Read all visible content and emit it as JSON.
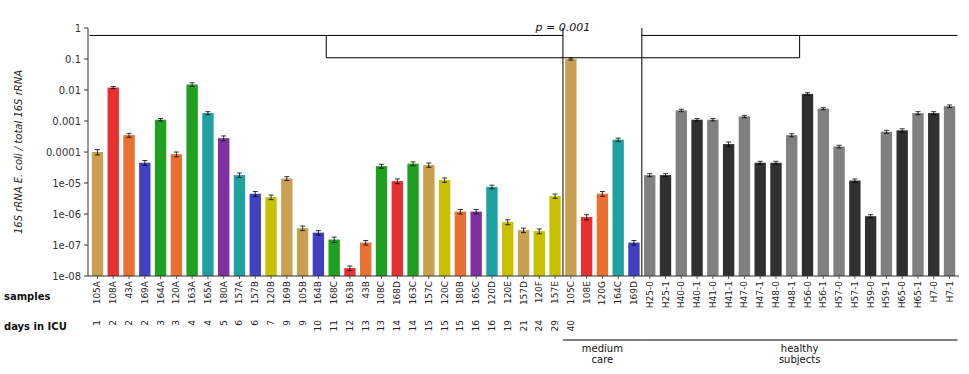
{
  "chart_data": {
    "type": "bar",
    "log": "y",
    "grid": false,
    "ylabel": "16S rRNA E. coli / total 16S rRNA",
    "ylim": [
      1e-08,
      1
    ],
    "yticks": [
      {
        "value": 1e-08,
        "label": "1e-08"
      },
      {
        "value": 1e-07,
        "label": "1e-07"
      },
      {
        "value": 1e-06,
        "label": "1e-06"
      },
      {
        "value": 1e-05,
        "label": "1e-05"
      },
      0.0001,
      0.001,
      0.01,
      0.1,
      1
    ],
    "categories": [
      "105A",
      "108A",
      "43A",
      "169A",
      "164A",
      "120A",
      "163A",
      "165A",
      "180A",
      "157A",
      "157B",
      "120B",
      "169B",
      "105B",
      "164B",
      "168C",
      "163B",
      "43B",
      "108C",
      "168D",
      "163C",
      "157C",
      "120C",
      "180B",
      "165C",
      "120D",
      "120E",
      "157D",
      "120F",
      "157E",
      "105C",
      "108E",
      "120G",
      "164C",
      "169D",
      "H25-0",
      "H25-1",
      "H40-0",
      "H40-1",
      "H41-0",
      "H41-1",
      "H47-0",
      "H47-1",
      "H48-0",
      "H48-1",
      "H56-0",
      "H56-1",
      "H57-0",
      "H57-1",
      "H59-0",
      "H59-1",
      "H65-0",
      "H65-1",
      "H7-0",
      "H7-1"
    ],
    "days": [
      "1",
      "2",
      "2",
      "2",
      "3",
      "3",
      "4",
      "4",
      "5",
      "6",
      "6",
      "7",
      "9",
      "9",
      "10",
      "11",
      "12",
      "13",
      "13",
      "14",
      "14",
      "15",
      "15",
      "15",
      "16",
      "16",
      "19",
      "21",
      "24",
      "29",
      "40",
      null,
      null,
      null,
      null,
      null,
      null,
      null,
      null,
      null,
      null,
      null,
      null,
      null,
      null,
      null,
      null,
      null,
      null,
      null,
      null,
      null,
      null,
      null,
      null
    ],
    "values": [
      0.0001,
      0.012,
      0.00035,
      4.5e-05,
      0.0011,
      8.5e-05,
      0.015,
      0.0018,
      0.00028,
      1.8e-05,
      4.5e-06,
      3.5e-06,
      1.4e-05,
      3.5e-07,
      2.5e-07,
      1.5e-07,
      1.8e-08,
      1.2e-07,
      3.5e-05,
      1.15e-05,
      4.2e-05,
      3.8e-05,
      1.25e-05,
      1.2e-06,
      1.2e-06,
      7.5e-06,
      5.5e-07,
      3e-07,
      2.8e-07,
      3.8e-06,
      0.1,
      8e-07,
      4.5e-06,
      0.00025,
      1.2e-07,
      1.8e-05,
      1.8e-05,
      0.0022,
      0.0011,
      0.0011,
      0.00018,
      0.0014,
      4.5e-05,
      4.5e-05,
      0.00035,
      0.0075,
      0.0025,
      0.00015,
      1.2e-05,
      8.5e-07,
      0.00045,
      0.0005,
      0.0018,
      0.0018,
      0.003
    ],
    "err_lo": [
      2e-05,
      0.001,
      5e-05,
      8e-06,
      0.0001,
      1.5e-05,
      0.002,
      0.0002,
      5e-05,
      3e-06,
      8e-07,
      6e-07,
      2e-06,
      6e-08,
      4e-08,
      3e-08,
      3e-09,
      2e-08,
      5e-06,
      2e-06,
      6e-06,
      6e-06,
      2e-06,
      2e-07,
      2e-07,
      1e-06,
      1e-07,
      5e-08,
      5e-08,
      6e-07,
      0.008,
      1.5e-07,
      8e-07,
      3e-05,
      2e-08,
      2e-06,
      2e-06,
      0.0002,
      0.0001,
      0.0001,
      3e-05,
      0.00012,
      5e-06,
      5e-06,
      4e-05,
      0.0007,
      0.0002,
      1.5e-05,
      1.5e-06,
      1e-07,
      5e-05,
      6e-05,
      0.0002,
      0.0002,
      0.0003
    ],
    "err_hi": [
      2e-05,
      0.001,
      5e-05,
      8e-06,
      0.0001,
      1.5e-05,
      0.002,
      0.0002,
      5e-05,
      3e-06,
      8e-07,
      6e-07,
      2e-06,
      6e-08,
      4e-08,
      3e-08,
      3e-09,
      2e-08,
      5e-06,
      2e-06,
      6e-06,
      6e-06,
      2e-06,
      2e-07,
      2e-07,
      1e-06,
      1e-07,
      5e-08,
      5e-08,
      6e-07,
      0.008,
      1.5e-07,
      8e-07,
      3e-05,
      2e-08,
      2e-06,
      2e-06,
      0.0002,
      0.0001,
      0.0001,
      3e-05,
      0.00012,
      5e-06,
      5e-06,
      4e-05,
      0.0007,
      0.0002,
      1.5e-05,
      1.5e-06,
      1e-07,
      5e-05,
      6e-05,
      0.0002,
      0.0002,
      0.0003
    ],
    "colors": [
      "#C8A050",
      "#E83030",
      "#E87030",
      "#4040C0",
      "#20A020",
      "#E87030",
      "#20A020",
      "#20A0A0",
      "#8030A0",
      "#20A0A0",
      "#4040C0",
      "#C8C000",
      "#C8A050",
      "#C8A050",
      "#4040C0",
      "#20A020",
      "#E83030",
      "#E87030",
      "#20A020",
      "#E83030",
      "#20A020",
      "#C8A050",
      "#C8C000",
      "#E87030",
      "#8030A0",
      "#20A0A0",
      "#C8C000",
      "#C8A050",
      "#C8C000",
      "#C8C000",
      "#C8A050",
      "#E83030",
      "#E87030",
      "#20A0A0",
      "#4040C0",
      "#808080",
      "#303030",
      "#808080",
      "#303030",
      "#808080",
      "#303030",
      "#808080",
      "#303030",
      "#303030",
      "#808080",
      "#303030",
      "#808080",
      "#808080",
      "#303030",
      "#303030",
      "#808080",
      "#303030",
      "#808080",
      "#303030",
      "#808080"
    ],
    "row_labels": [
      "samples",
      "days in ICU"
    ],
    "groups": [
      {
        "label": "medium\ncare",
        "start": 30
      },
      {
        "label": "healthy\nsubjects",
        "start": 35
      }
    ],
    "annotations": [
      "p = 0.001"
    ]
  }
}
